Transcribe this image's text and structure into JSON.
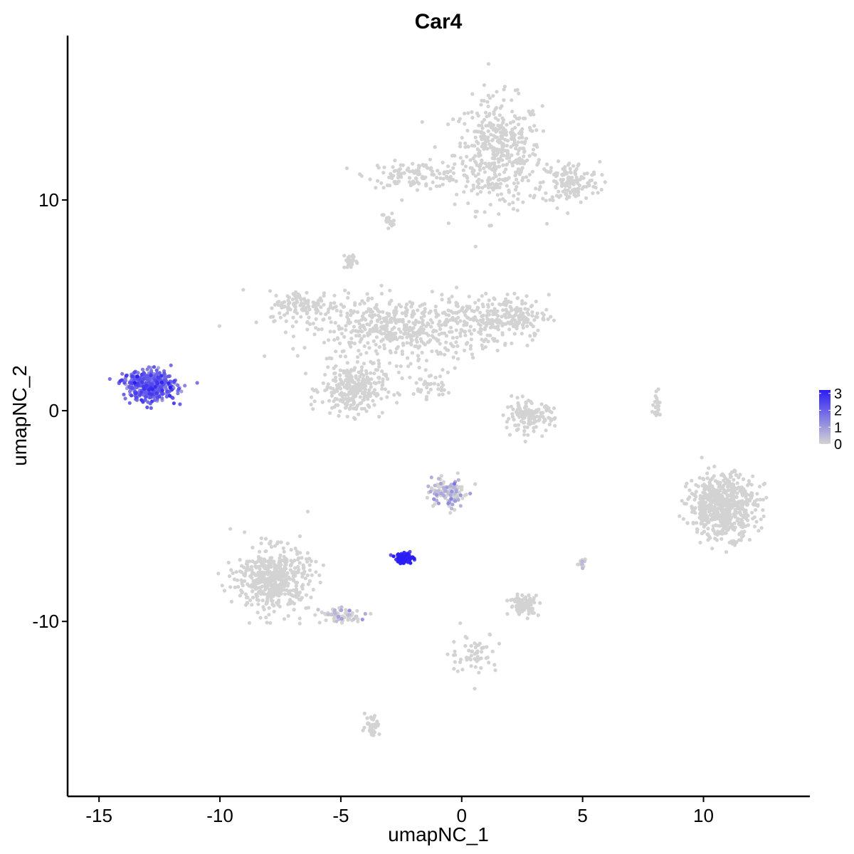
{
  "chart_data": {
    "type": "scatter",
    "title": "Car4",
    "xlabel": "umapNC_1",
    "ylabel": "umapNC_2",
    "xlim": [
      -16.3,
      14.4
    ],
    "ylim": [
      -18.3,
      17.8
    ],
    "xticks": [
      -15,
      -10,
      -5,
      0,
      5,
      10
    ],
    "xtick_labels": [
      "-15",
      "-10",
      "-5",
      "0",
      "5",
      "10"
    ],
    "yticks": [
      -10,
      0,
      10
    ],
    "ytick_labels": [
      "-10",
      "0",
      "10"
    ],
    "grid": false,
    "legend": {
      "position": "right",
      "type": "colorbar",
      "range": [
        0,
        3.2
      ],
      "ticks": [
        0,
        1,
        2,
        3
      ],
      "tick_labels": [
        "0",
        "1",
        "2",
        "3"
      ],
      "low_color": "#d3d3d3",
      "high_color": "#2b1df5"
    },
    "colors": {
      "low": "#d3d3d3",
      "high": "#2b1df5"
    },
    "clusters": [
      {
        "center": [
          1.5,
          12.2
        ],
        "spread": [
          1.8,
          2.6
        ],
        "count": 450,
        "expression": 0
      },
      {
        "center": [
          -1.9,
          11.2
        ],
        "spread": [
          2.0,
          0.6
        ],
        "count": 120,
        "expression": 0
      },
      {
        "center": [
          4.5,
          10.8
        ],
        "spread": [
          1.2,
          1.0
        ],
        "count": 150,
        "expression": 0
      },
      {
        "center": [
          -2.5,
          3.9
        ],
        "spread": [
          4.0,
          1.5
        ],
        "count": 550,
        "expression": 0
      },
      {
        "center": [
          -4.5,
          1.0
        ],
        "spread": [
          1.3,
          1.2
        ],
        "count": 280,
        "expression": 0
      },
      {
        "center": [
          1.8,
          4.5
        ],
        "spread": [
          1.8,
          1.0
        ],
        "count": 200,
        "expression": 0
      },
      {
        "center": [
          -6.5,
          5.0
        ],
        "spread": [
          1.5,
          0.7
        ],
        "count": 120,
        "expression": 0
      },
      {
        "center": [
          -12.9,
          1.2
        ],
        "spread": [
          1.1,
          0.7
        ],
        "count": 420,
        "expression": 1.8
      },
      {
        "center": [
          -2.4,
          -7.0
        ],
        "spread": [
          0.35,
          0.25
        ],
        "count": 110,
        "expression": 3.0
      },
      {
        "center": [
          -0.6,
          -3.9
        ],
        "spread": [
          0.7,
          0.7
        ],
        "count": 130,
        "expression": 0.5
      },
      {
        "center": [
          -7.8,
          -8.0
        ],
        "spread": [
          1.5,
          1.5
        ],
        "count": 500,
        "expression": 0
      },
      {
        "center": [
          -5.0,
          -9.7
        ],
        "spread": [
          0.9,
          0.4
        ],
        "count": 70,
        "expression": 0.1
      },
      {
        "center": [
          10.8,
          -4.5
        ],
        "spread": [
          1.4,
          1.5
        ],
        "count": 600,
        "expression": 0
      },
      {
        "center": [
          2.8,
          -0.3
        ],
        "spread": [
          1.0,
          0.7
        ],
        "count": 140,
        "expression": 0
      },
      {
        "center": [
          2.6,
          -9.2
        ],
        "spread": [
          0.6,
          0.5
        ],
        "count": 100,
        "expression": 0
      },
      {
        "center": [
          -3.7,
          -14.9
        ],
        "spread": [
          0.3,
          0.5
        ],
        "count": 40,
        "expression": 0
      },
      {
        "center": [
          0.5,
          -11.5
        ],
        "spread": [
          1.0,
          1.0
        ],
        "count": 60,
        "expression": 0
      },
      {
        "center": [
          8.1,
          0.2
        ],
        "spread": [
          0.2,
          0.6
        ],
        "count": 25,
        "expression": 0
      },
      {
        "center": [
          5.0,
          -7.3
        ],
        "spread": [
          0.15,
          0.2
        ],
        "count": 15,
        "expression": 0.6
      },
      {
        "center": [
          -3.0,
          9.0
        ],
        "spread": [
          0.3,
          0.5
        ],
        "count": 20,
        "expression": 0
      },
      {
        "center": [
          -4.6,
          7.1
        ],
        "spread": [
          0.3,
          0.4
        ],
        "count": 25,
        "expression": 0
      },
      {
        "center": [
          -1.4,
          1.2
        ],
        "spread": [
          1.2,
          0.5
        ],
        "count": 40,
        "expression": 0
      }
    ]
  }
}
